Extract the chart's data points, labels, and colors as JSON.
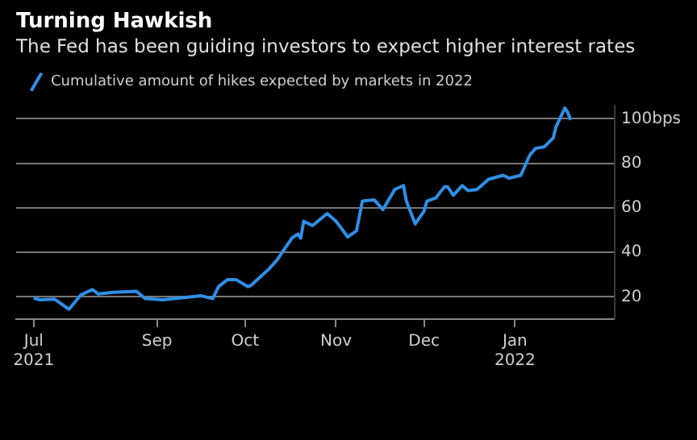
{
  "chart_data": {
    "type": "line",
    "title": "Turning Hawkish",
    "subtitle": "The Fed has been guiding investors to expect higher interest rates",
    "x": [
      "2021-07-21",
      "2021-07-23",
      "2021-07-28",
      "2021-07-29",
      "2021-08-02",
      "2021-08-06",
      "2021-08-10",
      "2021-08-12",
      "2021-08-17",
      "2021-08-25",
      "2021-08-28",
      "2021-09-03",
      "2021-09-11",
      "2021-09-16",
      "2021-09-20",
      "2021-09-22",
      "2021-09-25",
      "2021-09-28",
      "2021-10-02",
      "2021-10-03",
      "2021-10-09",
      "2021-10-12",
      "2021-10-17",
      "2021-10-19",
      "2021-10-20",
      "2021-10-21",
      "2021-10-24",
      "2021-10-29",
      "2021-11-01",
      "2021-11-02",
      "2021-11-05",
      "2021-11-08",
      "2021-11-10",
      "2021-11-14",
      "2021-11-17",
      "2021-11-21",
      "2021-11-24",
      "2021-11-25",
      "2021-11-28",
      "2021-12-01",
      "2021-12-02",
      "2021-12-05",
      "2021-12-08",
      "2021-12-09",
      "2021-12-11",
      "2021-12-14",
      "2021-12-16",
      "2021-12-19",
      "2021-12-23",
      "2021-12-28",
      "2021-12-30",
      "2022-01-03",
      "2022-01-06",
      "2022-01-08",
      "2022-01-11",
      "2022-01-14",
      "2022-01-15",
      "2022-01-18",
      "2022-01-19",
      "2022-01-20"
    ],
    "series": [
      {
        "name": "Cumulative amount of hikes expected by markets in 2022",
        "color": "#2e8fe6",
        "values": [
          19.5,
          18.7,
          19,
          18.2,
          14.4,
          20.8,
          23.3,
          21.3,
          22,
          22.5,
          19.2,
          18.7,
          19.8,
          20.5,
          19.2,
          24.6,
          27.7,
          27.7,
          24.6,
          25.1,
          32.3,
          36.7,
          46.4,
          48.2,
          46.4,
          54,
          52,
          57.4,
          54,
          52.3,
          46.9,
          49.7,
          63,
          63.6,
          59.2,
          68.2,
          70,
          63,
          52.8,
          58.5,
          63,
          64.4,
          69.5,
          69.5,
          65.6,
          70,
          67.7,
          68.2,
          72.8,
          74.6,
          73.3,
          74.6,
          83.6,
          86.7,
          87.4,
          91.3,
          96.4,
          104.8,
          102.8,
          99.5
        ]
      }
    ],
    "xlim": [
      "2021-07-15",
      "2022-02-04"
    ],
    "xticks": [
      {
        "value": "2021-07-21",
        "label": "Jul\n2021"
      },
      {
        "value": "2021-09-01",
        "label": "Sep"
      },
      {
        "value": "2021-10-01",
        "label": "Oct"
      },
      {
        "value": "2021-11-01",
        "label": "Nov"
      },
      {
        "value": "2021-12-01",
        "label": "Dec"
      },
      {
        "value": "2022-01-01",
        "label": "Jan\n2022"
      }
    ],
    "ylim": [
      10,
      106
    ],
    "yticks": [
      20,
      40,
      60,
      80,
      {
        "value": 100,
        "label": "100bps"
      }
    ],
    "grid": "y",
    "legend": "top left",
    "marker": "none",
    "line_style": "solid"
  }
}
